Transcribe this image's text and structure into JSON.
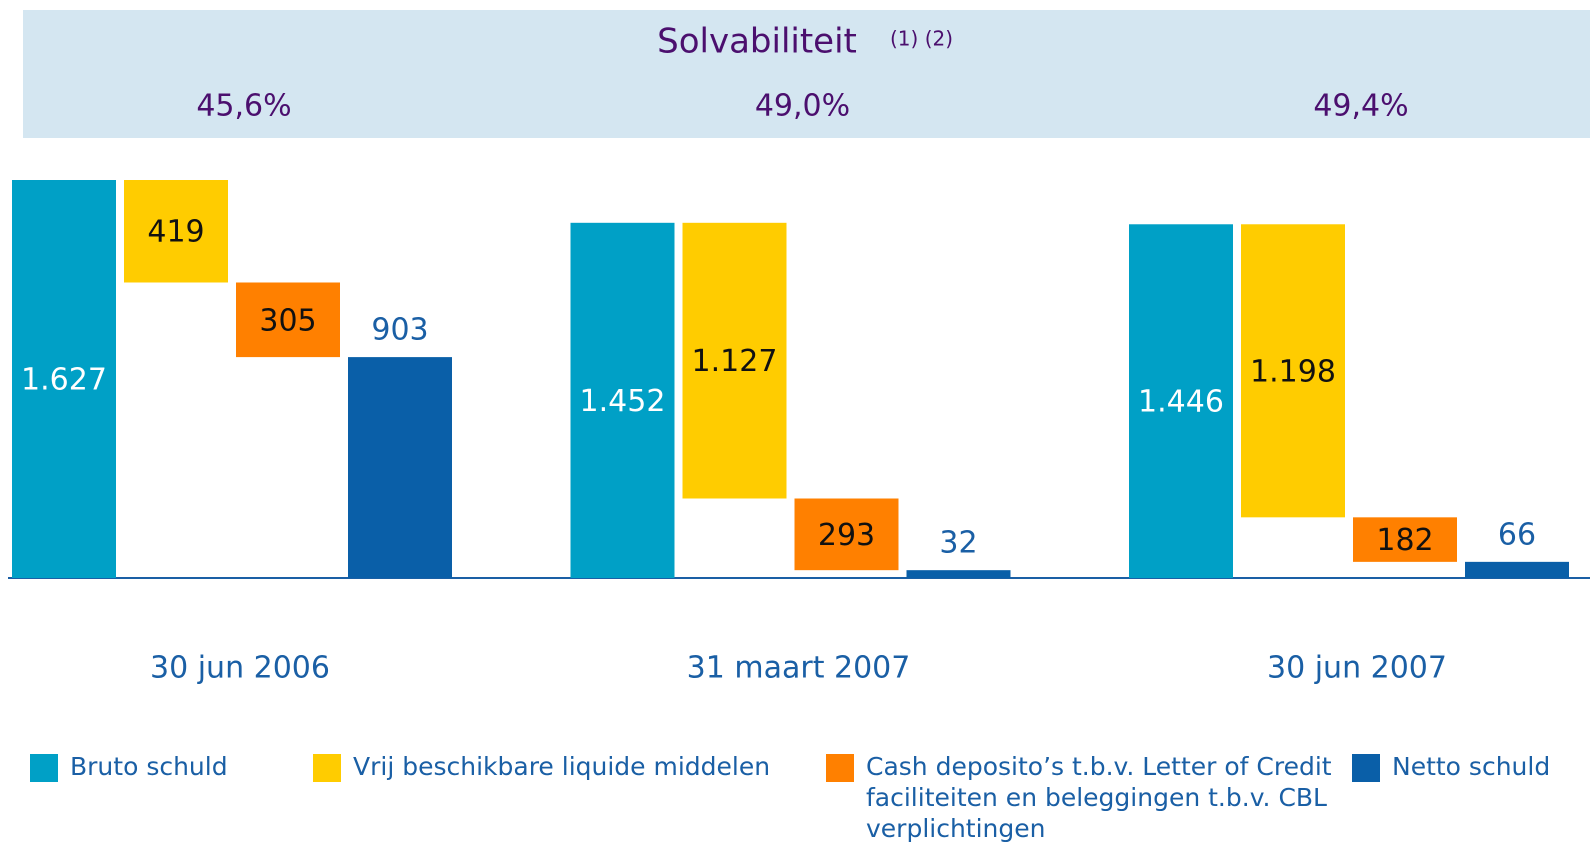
{
  "chart_data": {
    "type": "waterfall",
    "title": "Solvabiliteit",
    "title_note": "(1) (2)",
    "solvency": {
      "values": [
        45.6,
        49.0,
        49.4
      ],
      "value_labels": [
        "45,6%",
        "49,0%",
        "49,4%"
      ]
    },
    "categories": [
      "30 jun 2006",
      "31 maart 2007",
      "30 jun 2007"
    ],
    "series": [
      {
        "name": "Bruto schuld",
        "color": "#00a0c6",
        "measure": "absolute",
        "values": [
          1627,
          1452,
          1446
        ],
        "value_labels": [
          "1.627",
          "1.452",
          "1.446"
        ]
      },
      {
        "name": "Vrij beschikbare liquide middelen",
        "color": "#ffcc00",
        "measure": "decrease",
        "values": [
          419,
          1127,
          1198
        ],
        "value_labels": [
          "419",
          "1.127",
          "1.198"
        ]
      },
      {
        "name": "Cash deposito’s t.b.v. Letter of Credit faciliteiten en beleggingen t.b.v. CBL verplichtingen",
        "color": "#ff8000",
        "measure": "decrease",
        "values": [
          305,
          293,
          182
        ],
        "value_labels": [
          "305",
          "293",
          "182"
        ]
      },
      {
        "name": "Netto schuld",
        "color": "#0a5fa8",
        "measure": "total",
        "values": [
          903,
          32,
          66
        ],
        "value_labels": [
          "903",
          "32",
          "66"
        ]
      }
    ]
  }
}
